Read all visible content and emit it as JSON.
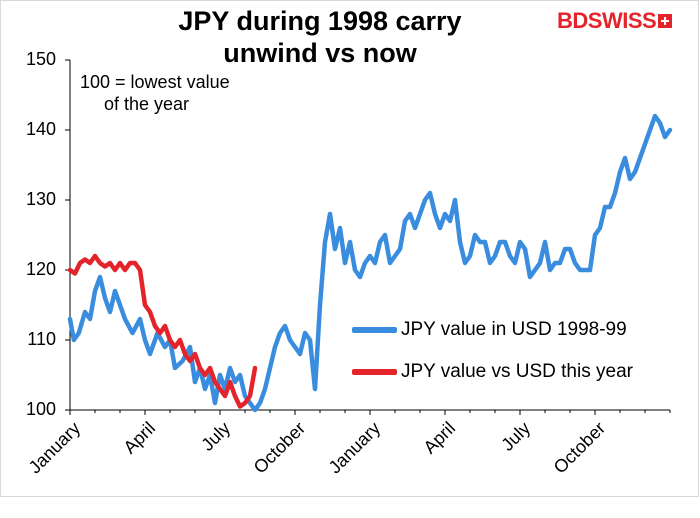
{
  "title_line1": "JPY during 1998 carry",
  "title_line2": "unwind vs now",
  "logo": {
    "bd": "BD",
    "swiss": "SWISS",
    "icon": "swiss-cross-flag-icon"
  },
  "note_line1": "100 = lowest value",
  "note_line2": "of the year",
  "colors": {
    "series_1998": "#3a8dde",
    "series_this_year": "#e4242b",
    "axis": "#000000"
  },
  "chart_data": {
    "type": "line",
    "ylim": [
      100,
      150
    ],
    "yticks": [
      100,
      110,
      120,
      130,
      140,
      150
    ],
    "xticks": [
      {
        "label": "January",
        "pos": 0
      },
      {
        "label": "April",
        "pos": 3
      },
      {
        "label": "July",
        "pos": 6
      },
      {
        "label": "October",
        "pos": 9
      },
      {
        "label": "January",
        "pos": 12
      },
      {
        "label": "April",
        "pos": 15
      },
      {
        "label": "July",
        "pos": 18
      },
      {
        "label": "October",
        "pos": 21
      }
    ],
    "xlim": [
      0,
      24
    ],
    "grid": false,
    "legend_position": "right-middle",
    "series": [
      {
        "name": "JPY value in USD 1998-99",
        "x": [
          0,
          0.15,
          0.35,
          0.6,
          0.8,
          1.0,
          1.2,
          1.4,
          1.6,
          1.8,
          2.0,
          2.2,
          2.5,
          2.8,
          3.0,
          3.2,
          3.5,
          3.8,
          4.0,
          4.2,
          4.5,
          4.8,
          5.0,
          5.2,
          5.4,
          5.6,
          5.8,
          6.0,
          6.2,
          6.4,
          6.6,
          6.8,
          7.0,
          7.2,
          7.4,
          7.6,
          7.8,
          8.0,
          8.2,
          8.4,
          8.6,
          8.8,
          9.0,
          9.2,
          9.4,
          9.6,
          9.8,
          10.0,
          10.2,
          10.4,
          10.6,
          10.8,
          11.0,
          11.2,
          11.4,
          11.6,
          11.8,
          12.0,
          12.2,
          12.4,
          12.6,
          12.8,
          13.0,
          13.2,
          13.4,
          13.6,
          13.8,
          14.0,
          14.2,
          14.4,
          14.6,
          14.8,
          15.0,
          15.2,
          15.4,
          15.6,
          15.8,
          16.0,
          16.2,
          16.4,
          16.6,
          16.8,
          17.0,
          17.2,
          17.4,
          17.6,
          17.8,
          18.0,
          18.2,
          18.4,
          18.6,
          18.8,
          19.0,
          19.2,
          19.4,
          19.6,
          19.8,
          20.0,
          20.2,
          20.4,
          20.6,
          20.8,
          21.0,
          21.2,
          21.4,
          21.6,
          21.8,
          22.0,
          22.2,
          22.4,
          22.6,
          22.8,
          23.0,
          23.2,
          23.4,
          23.6,
          23.8,
          24.0
        ],
        "values": [
          113,
          110,
          111,
          114,
          113,
          117,
          119,
          116,
          114,
          117,
          115,
          113,
          111,
          113,
          110,
          108,
          111,
          109,
          110,
          106,
          107,
          109,
          104,
          106,
          103,
          105,
          101,
          105,
          103,
          106,
          104,
          105,
          102,
          101,
          100,
          101,
          103,
          106,
          109,
          111,
          112,
          110,
          109,
          108,
          111,
          110,
          103,
          115,
          124,
          128,
          123,
          126,
          121,
          124,
          120,
          119,
          121,
          122,
          121,
          124,
          125,
          121,
          122,
          123,
          127,
          128,
          126,
          128,
          130,
          131,
          128,
          126,
          128,
          127,
          130,
          124,
          121,
          122,
          125,
          124,
          124,
          121,
          122,
          124,
          124,
          122,
          121,
          124,
          123,
          119,
          120,
          121,
          124,
          120,
          121,
          121,
          123,
          123,
          121,
          120,
          120,
          120,
          125,
          126,
          129,
          129,
          131,
          134,
          136,
          133,
          134,
          136,
          138,
          140,
          142,
          141,
          139,
          140
        ],
        "color": "#3a8dde"
      },
      {
        "name": "JPY value vs USD this year",
        "x": [
          0,
          0.2,
          0.4,
          0.6,
          0.8,
          1.0,
          1.2,
          1.4,
          1.6,
          1.8,
          2.0,
          2.2,
          2.4,
          2.6,
          2.8,
          3.0,
          3.2,
          3.4,
          3.6,
          3.8,
          4.0,
          4.2,
          4.4,
          4.6,
          4.8,
          5.0,
          5.2,
          5.4,
          5.6,
          5.8,
          6.0,
          6.2,
          6.4,
          6.6,
          6.8,
          7.0,
          7.2,
          7.4
        ],
        "values": [
          120,
          119.5,
          121,
          121.5,
          121,
          122,
          121,
          120.5,
          121,
          120,
          121,
          120,
          121,
          121,
          120,
          115,
          114,
          112,
          111,
          112,
          110,
          109,
          110,
          108,
          107,
          108,
          106,
          105,
          106,
          104,
          103,
          102,
          104,
          102,
          100.5,
          101,
          102,
          106
        ],
        "color": "#e4242b"
      }
    ]
  }
}
